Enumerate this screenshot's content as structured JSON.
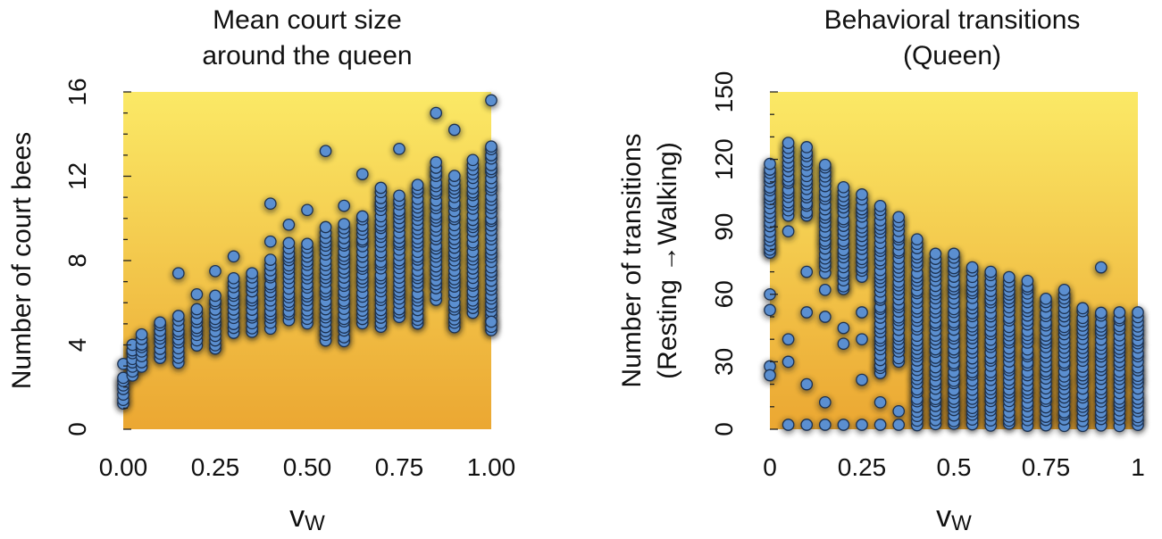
{
  "chart_data": [
    {
      "type": "scatter",
      "title_lines": [
        "Mean court size",
        "around the queen"
      ],
      "xlabel_main": "v",
      "xlabel_sub": "W",
      "ylabel_lines": [
        "Number of court bees"
      ],
      "xlim": [
        0,
        1
      ],
      "ylim": [
        0,
        16
      ],
      "xticks": [
        0,
        0.25,
        0.5,
        0.75,
        1
      ],
      "xtick_labels": [
        "0.00",
        "0.25",
        "0.50",
        "0.75",
        "1.00"
      ],
      "yticks": [
        0,
        4,
        8,
        12,
        16
      ],
      "ytick_labels": [
        "0",
        "4",
        "8",
        "12",
        "16"
      ],
      "y_minor_step": 1,
      "background": {
        "top": "#fbe966",
        "bottom": "#eba732"
      },
      "marker_color": "#5b8fd0",
      "marker_edge": "#1c3150",
      "columns": [
        {
          "x": 0.0,
          "min": 1.2,
          "max": 2.6,
          "out": [
            3.1
          ]
        },
        {
          "x": 0.025,
          "min": 2.5,
          "max": 4.2,
          "out": []
        },
        {
          "x": 0.05,
          "min": 3.0,
          "max": 4.5,
          "out": []
        },
        {
          "x": 0.1,
          "min": 3.4,
          "max": 5.2,
          "out": []
        },
        {
          "x": 0.15,
          "min": 3.2,
          "max": 5.5,
          "out": [
            7.4
          ]
        },
        {
          "x": 0.2,
          "min": 4.0,
          "max": 5.8,
          "out": [
            6.4
          ]
        },
        {
          "x": 0.25,
          "min": 3.8,
          "max": 6.5,
          "out": [
            7.5
          ]
        },
        {
          "x": 0.3,
          "min": 4.6,
          "max": 7.2,
          "out": [
            8.2
          ]
        },
        {
          "x": 0.35,
          "min": 4.6,
          "max": 7.5,
          "out": []
        },
        {
          "x": 0.4,
          "min": 4.8,
          "max": 8.2,
          "out": [
            10.7,
            8.9
          ]
        },
        {
          "x": 0.45,
          "min": 5.2,
          "max": 9.0,
          "out": [
            9.7
          ]
        },
        {
          "x": 0.5,
          "min": 5.0,
          "max": 9.0,
          "out": [
            10.4
          ]
        },
        {
          "x": 0.55,
          "min": 4.2,
          "max": 9.6,
          "out": [
            13.2
          ]
        },
        {
          "x": 0.6,
          "min": 4.2,
          "max": 9.8,
          "out": [
            10.6
          ]
        },
        {
          "x": 0.65,
          "min": 5.0,
          "max": 10.2,
          "out": [
            12.1
          ]
        },
        {
          "x": 0.7,
          "min": 4.8,
          "max": 11.5,
          "out": []
        },
        {
          "x": 0.75,
          "min": 5.3,
          "max": 11.2,
          "out": [
            13.3
          ]
        },
        {
          "x": 0.8,
          "min": 5.0,
          "max": 11.8,
          "out": []
        },
        {
          "x": 0.85,
          "min": 6.2,
          "max": 12.8,
          "out": [
            15.0
          ]
        },
        {
          "x": 0.9,
          "min": 4.8,
          "max": 12.2,
          "out": [
            14.2
          ]
        },
        {
          "x": 0.95,
          "min": 5.5,
          "max": 12.8,
          "out": []
        },
        {
          "x": 1.0,
          "min": 4.7,
          "max": 13.6,
          "out": [
            15.6,
            5.1
          ]
        }
      ]
    },
    {
      "type": "scatter",
      "title_lines": [
        "Behavioral transitions",
        "(Queen)"
      ],
      "xlabel_main": "v",
      "xlabel_sub": "W",
      "ylabel_lines": [
        "Number of transitions",
        "(Resting →Walking)"
      ],
      "xlim": [
        0,
        1
      ],
      "ylim": [
        0,
        150
      ],
      "xticks": [
        0,
        0.25,
        0.5,
        0.75,
        1
      ],
      "xtick_labels": [
        "0",
        "0.25",
        "0.5",
        "0.75",
        "1"
      ],
      "yticks": [
        0,
        30,
        60,
        90,
        120,
        150
      ],
      "ytick_labels": [
        "0",
        "30",
        "60",
        "90",
        "120",
        "150"
      ],
      "y_minor_step": 10,
      "background": {
        "top": "#fbe966",
        "bottom": "#eba732"
      },
      "marker_color": "#5b8fd0",
      "marker_edge": "#1c3150",
      "columns": [
        {
          "x": 0.0,
          "min": 78,
          "max": 118,
          "out": [
            60,
            53,
            28,
            24
          ]
        },
        {
          "x": 0.05,
          "min": 95,
          "max": 128,
          "out": [
            88,
            40,
            30,
            2
          ]
        },
        {
          "x": 0.1,
          "min": 95,
          "max": 126,
          "out": [
            70,
            52,
            20,
            2
          ]
        },
        {
          "x": 0.15,
          "min": 70,
          "max": 118,
          "out": [
            62,
            50,
            12,
            2
          ]
        },
        {
          "x": 0.2,
          "min": 62,
          "max": 108,
          "out": [
            45,
            38,
            2
          ]
        },
        {
          "x": 0.25,
          "min": 68,
          "max": 105,
          "out": [
            52,
            40,
            22,
            2
          ]
        },
        {
          "x": 0.3,
          "min": 25,
          "max": 100,
          "out": [
            12,
            2
          ]
        },
        {
          "x": 0.35,
          "min": 30,
          "max": 95,
          "out": [
            8,
            2
          ]
        },
        {
          "x": 0.4,
          "min": 2,
          "max": 85,
          "out": []
        },
        {
          "x": 0.45,
          "min": 2,
          "max": 78,
          "out": []
        },
        {
          "x": 0.5,
          "min": 2,
          "max": 78,
          "out": []
        },
        {
          "x": 0.55,
          "min": 2,
          "max": 72,
          "out": []
        },
        {
          "x": 0.6,
          "min": 2,
          "max": 70,
          "out": []
        },
        {
          "x": 0.65,
          "min": 2,
          "max": 68,
          "out": []
        },
        {
          "x": 0.7,
          "min": 2,
          "max": 66,
          "out": []
        },
        {
          "x": 0.75,
          "min": 2,
          "max": 58,
          "out": []
        },
        {
          "x": 0.8,
          "min": 2,
          "max": 62,
          "out": []
        },
        {
          "x": 0.85,
          "min": 2,
          "max": 54,
          "out": []
        },
        {
          "x": 0.9,
          "min": 2,
          "max": 52,
          "out": [
            72
          ]
        },
        {
          "x": 0.95,
          "min": 2,
          "max": 52,
          "out": []
        },
        {
          "x": 1.0,
          "min": 2,
          "max": 52,
          "out": []
        }
      ]
    }
  ]
}
